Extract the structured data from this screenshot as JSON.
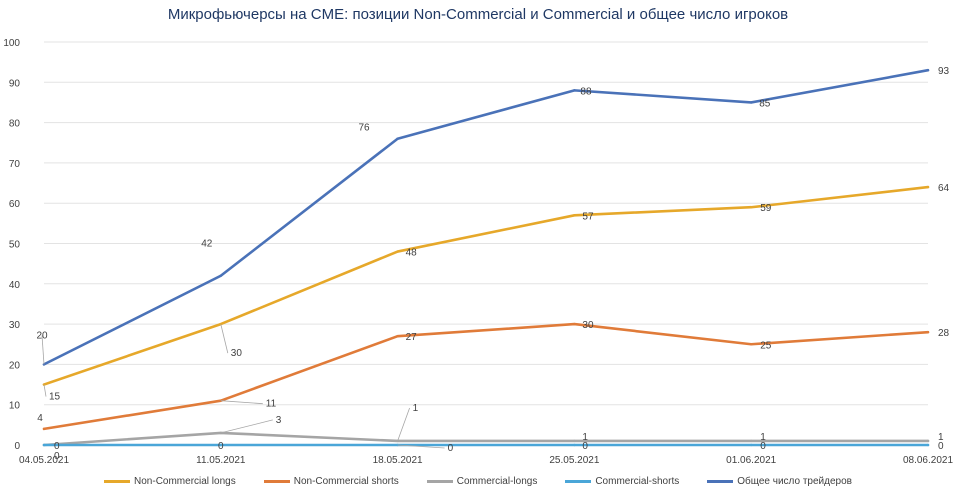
{
  "chart_data": {
    "type": "line",
    "title": "Микрофьючерсы на CME: позиции Non-Commercial и Commercial и общее число игроков",
    "categories": [
      "04.05.2021",
      "11.05.2021",
      "18.05.2021",
      "25.05.2021",
      "01.06.2021",
      "08.06.2021"
    ],
    "ylim": [
      0,
      100
    ],
    "yticks": [
      0,
      10,
      20,
      30,
      40,
      50,
      60,
      70,
      80,
      90,
      100
    ],
    "grid": true,
    "legend_position": "bottom",
    "series": [
      {
        "name": "Non-Commercial longs",
        "color": "#e6a82a",
        "values": [
          15,
          30,
          48,
          57,
          59,
          64
        ]
      },
      {
        "name": "Non-Commercial shorts",
        "color": "#e07b39",
        "values": [
          4,
          11,
          27,
          30,
          25,
          28
        ]
      },
      {
        "name": "Commercial-longs",
        "color": "#a5a5a5",
        "values": [
          0,
          3,
          1,
          1,
          1,
          1
        ]
      },
      {
        "name": "Commercial-shorts",
        "color": "#4aa6d8",
        "values": [
          0,
          0,
          0,
          0,
          0,
          0
        ]
      },
      {
        "name": "Общее число трейдеров",
        "color": "#4a72b8",
        "values": [
          20,
          42,
          76,
          88,
          85,
          93
        ]
      }
    ]
  }
}
